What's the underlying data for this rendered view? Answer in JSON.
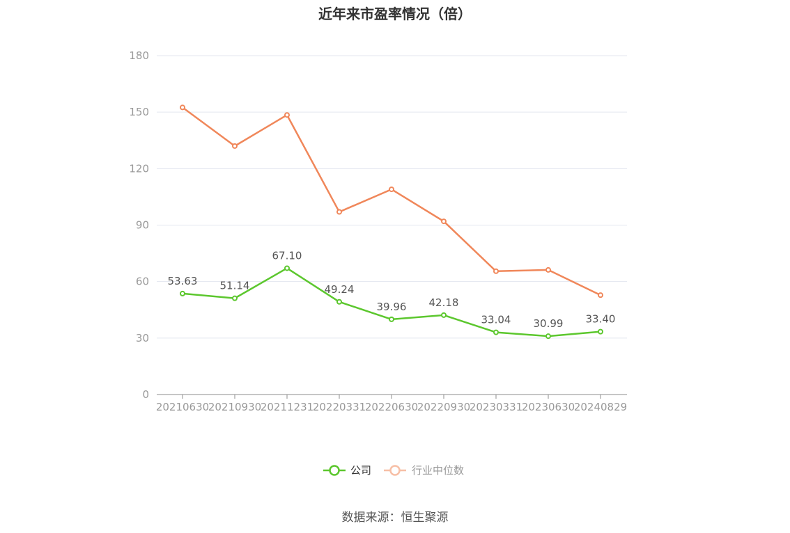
{
  "chart_data": {
    "type": "line",
    "title": "近年来市盈率情况（倍）",
    "categories": [
      "20210630",
      "20210930",
      "20211231",
      "20220331",
      "20220630",
      "20220930",
      "20230331",
      "20230630",
      "20240829"
    ],
    "ylim": [
      0,
      180
    ],
    "yticks": [
      0,
      30,
      60,
      90,
      120,
      150,
      180
    ],
    "grid": true,
    "legend_position": "bottom",
    "series": [
      {
        "name": "公司",
        "color": "#5cc72e",
        "values": [
          53.63,
          51.14,
          67.1,
          49.24,
          39.96,
          42.18,
          33.04,
          30.99,
          33.4
        ],
        "labels": [
          "53.63",
          "51.14",
          "67.10",
          "49.24",
          "39.96",
          "42.18",
          "33.04",
          "30.99",
          "33.40"
        ]
      },
      {
        "name": "行业中位数",
        "color": "#f0875a",
        "values": [
          152.5,
          132.0,
          148.5,
          97.0,
          109.0,
          92.0,
          65.5,
          66.2,
          52.8
        ]
      }
    ]
  },
  "source": "数据来源：恒生聚源"
}
